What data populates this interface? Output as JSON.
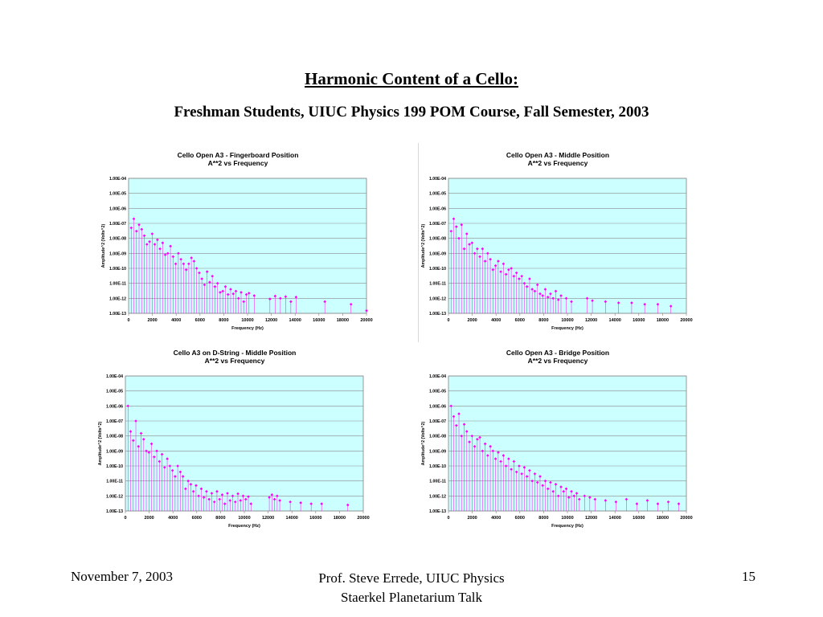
{
  "slide": {
    "title": "Harmonic Content of a Cello:",
    "subtitle": "Freshman Students, UIUC Physics 199 POM Course, Fall Semester, 2003",
    "footer_left": "November 7, 2003",
    "footer_center_line1": "Prof. Steve Errede, UIUC Physics",
    "footer_center_line2": "Staerkel Planetarium Talk",
    "page_number": "15"
  },
  "colors": {
    "plot_background": "#ccffff",
    "series": "#ff00ff",
    "grid": "#8c8c8c"
  },
  "chart_data": [
    {
      "type": "scatter",
      "title": "Cello Open A3 - Fingerboard Position",
      "subtitle": "A**2 vs Frequency",
      "xlabel": "Frequency (Hz)",
      "ylabel": "Amplitude^2 (Volts^2)",
      "y_scale": "log",
      "xlim": [
        0,
        20000
      ],
      "ylim": [
        "1.00E-13",
        "1.00E-04"
      ],
      "x_ticks": [
        "0",
        "2000",
        "4000",
        "6000",
        "8000",
        "10000",
        "12000",
        "14000",
        "16000",
        "18000",
        "20000"
      ],
      "y_ticks": [
        "1.00E-04",
        "1.00E-05",
        "1.00E-06",
        "1.00E-07",
        "1.00E-08",
        "1.00E-09",
        "1.00E-10",
        "1.00E-11",
        "1.00E-12",
        "1.00E-13"
      ],
      "grid": true,
      "x": [
        220,
        440,
        660,
        880,
        1100,
        1320,
        1540,
        1760,
        1980,
        2200,
        2420,
        2640,
        2860,
        3080,
        3300,
        3520,
        3740,
        3960,
        4180,
        4400,
        4620,
        4840,
        5060,
        5280,
        5500,
        5720,
        5940,
        6160,
        6380,
        6600,
        6820,
        7040,
        7260,
        7480,
        7700,
        7920,
        8140,
        8360,
        8580,
        8800,
        9020,
        9240,
        9460,
        9680,
        9900,
        10120,
        10560,
        11880,
        12320,
        12760,
        13200,
        13640,
        14080,
        16500,
        18700,
        20000
      ],
      "values": [
        5e-08,
        2e-07,
        3e-08,
        8e-08,
        4e-08,
        1.5e-08,
        4e-09,
        6e-09,
        2e-08,
        4e-09,
        8e-09,
        2e-09,
        5e-09,
        8e-10,
        1e-09,
        3e-09,
        6e-10,
        2e-10,
        1e-09,
        4e-10,
        2e-10,
        8e-11,
        2e-10,
        5e-10,
        3e-10,
        1e-10,
        5e-11,
        2e-11,
        8e-12,
        6e-11,
        1.2e-11,
        3e-11,
        6e-12,
        1e-11,
        2.5e-12,
        3e-12,
        6e-12,
        1.8e-12,
        4e-12,
        2e-12,
        3e-12,
        1e-12,
        2.5e-12,
        6e-13,
        1.8e-12,
        2.2e-12,
        1.5e-12,
        9e-13,
        1.4e-12,
        1e-12,
        1.3e-12,
        6e-13,
        1.2e-12,
        6e-13,
        4e-13,
        1.5e-13
      ]
    },
    {
      "type": "scatter",
      "title": "Cello Open A3 - Middle Position",
      "subtitle": "A**2 vs Frequency",
      "xlabel": "Frequency (Hz)",
      "ylabel": "Amplitude^2 (Volts^2)",
      "y_scale": "log",
      "xlim": [
        0,
        20000
      ],
      "ylim": [
        "1.00E-13",
        "1.00E-04"
      ],
      "x_ticks": [
        "0",
        "2000",
        "4000",
        "6000",
        "8000",
        "10000",
        "12000",
        "14000",
        "16000",
        "18000",
        "20000"
      ],
      "y_ticks": [
        "1.00E-04",
        "1.00E-05",
        "1.00E-06",
        "1.00E-07",
        "1.00E-08",
        "1.00E-09",
        "1.00E-10",
        "1.00E-11",
        "1.00E-12",
        "1.00E-13"
      ],
      "grid": true,
      "x": [
        220,
        440,
        660,
        880,
        1100,
        1320,
        1540,
        1760,
        1980,
        2200,
        2420,
        2640,
        2860,
        3080,
        3300,
        3520,
        3740,
        3960,
        4180,
        4400,
        4620,
        4840,
        5060,
        5280,
        5500,
        5720,
        5940,
        6160,
        6380,
        6600,
        6820,
        7040,
        7260,
        7480,
        7700,
        7920,
        8140,
        8360,
        8580,
        8800,
        9020,
        9240,
        9460,
        9900,
        10340,
        11660,
        12100,
        13200,
        14300,
        15400,
        16500,
        17600,
        18700
      ],
      "values": [
        3e-08,
        2e-07,
        6e-08,
        1e-08,
        8e-08,
        2e-09,
        2e-08,
        4e-09,
        5e-09,
        1e-09,
        2e-09,
        6e-10,
        2e-09,
        3e-10,
        1e-09,
        4e-10,
        8e-11,
        1.5e-10,
        3e-10,
        6e-11,
        2e-10,
        4e-11,
        8e-11,
        1e-10,
        3e-11,
        5e-11,
        2e-11,
        3e-11,
        1e-11,
        6e-12,
        2e-11,
        4e-12,
        3e-12,
        8e-12,
        2e-12,
        1.5e-12,
        4e-12,
        1.2e-12,
        2e-12,
        1e-12,
        3e-12,
        8e-13,
        1.5e-12,
        1e-12,
        6e-13,
        1e-12,
        7e-13,
        6e-13,
        5e-13,
        5e-13,
        4e-13,
        4e-13,
        3e-13
      ]
    },
    {
      "type": "scatter",
      "title": "Cello A3 on D-String - Middle Position",
      "subtitle": "A**2 vs Frequency",
      "xlabel": "Frequency (Hz)",
      "ylabel": "Amplitude^2 (Volts^2)",
      "y_scale": "log",
      "xlim": [
        0,
        20000
      ],
      "ylim": [
        "1.00E-13",
        "1.00E-04"
      ],
      "x_ticks": [
        "0",
        "2000",
        "4000",
        "6000",
        "8000",
        "10000",
        "12000",
        "14000",
        "16000",
        "18000",
        "20000"
      ],
      "y_ticks": [
        "1.00E-04",
        "1.00E-05",
        "1.00E-06",
        "1.00E-07",
        "1.00E-08",
        "1.00E-09",
        "1.00E-10",
        "1.00E-11",
        "1.00E-12",
        "1.00E-13"
      ],
      "grid": true,
      "x": [
        220,
        440,
        660,
        880,
        1100,
        1320,
        1540,
        1760,
        1980,
        2200,
        2420,
        2640,
        2860,
        3080,
        3300,
        3520,
        3740,
        3960,
        4180,
        4400,
        4620,
        4840,
        5060,
        5280,
        5500,
        5720,
        5940,
        6160,
        6380,
        6600,
        6820,
        7040,
        7260,
        7480,
        7700,
        7920,
        8140,
        8360,
        8580,
        8800,
        9020,
        9240,
        9460,
        9680,
        9900,
        10120,
        10340,
        10560,
        12100,
        12320,
        12540,
        12760,
        12980,
        13860,
        14740,
        15620,
        16500,
        18700
      ],
      "values": [
        1e-06,
        2e-08,
        5e-09,
        1e-07,
        2e-09,
        1.5e-08,
        6e-09,
        1e-09,
        8e-10,
        3e-09,
        4e-10,
        1e-09,
        2e-10,
        6e-10,
        8e-11,
        3e-10,
        1e-10,
        5e-11,
        2e-11,
        1e-10,
        4e-11,
        2e-11,
        3e-12,
        1e-11,
        6e-12,
        2e-12,
        5e-12,
        1e-12,
        3e-12,
        8e-13,
        2e-12,
        6e-13,
        1.5e-12,
        4e-13,
        2e-12,
        6e-13,
        1.2e-12,
        3e-13,
        1.5e-12,
        5e-13,
        1e-12,
        4e-13,
        1.4e-12,
        5e-13,
        1e-12,
        6e-13,
        9e-13,
        3e-13,
        8e-13,
        1.2e-12,
        6e-13,
        1e-12,
        5e-13,
        4e-13,
        3.5e-13,
        3e-13,
        3e-13,
        2.5e-13
      ]
    },
    {
      "type": "scatter",
      "title": "Cello Open A3 - Bridge Position",
      "subtitle": "A**2 vs Frequency",
      "xlabel": "Frequency (Hz)",
      "ylabel": "Amplitude^2 (Volts^2)",
      "y_scale": "log",
      "xlim": [
        0,
        20000
      ],
      "ylim": [
        "1.00E-13",
        "1.00E-04"
      ],
      "x_ticks": [
        "0",
        "2000",
        "4000",
        "6000",
        "8000",
        "10000",
        "12000",
        "14000",
        "16000",
        "18000",
        "20000"
      ],
      "y_ticks": [
        "1.00E-04",
        "1.00E-05",
        "1.00E-06",
        "1.00E-07",
        "1.00E-08",
        "1.00E-09",
        "1.00E-10",
        "1.00E-11",
        "1.00E-12",
        "1.00E-13"
      ],
      "grid": true,
      "x": [
        220,
        440,
        660,
        880,
        1100,
        1320,
        1540,
        1760,
        1980,
        2200,
        2420,
        2640,
        2860,
        3080,
        3300,
        3520,
        3740,
        3960,
        4180,
        4400,
        4620,
        4840,
        5060,
        5280,
        5500,
        5720,
        5940,
        6160,
        6380,
        6600,
        6820,
        7040,
        7260,
        7480,
        7700,
        7920,
        8140,
        8360,
        8580,
        8800,
        9020,
        9240,
        9460,
        9680,
        9900,
        10120,
        10340,
        10560,
        10780,
        11000,
        11440,
        11880,
        12320,
        13200,
        14080,
        14960,
        15840,
        16720,
        17600,
        18480,
        19360
      ],
      "values": [
        1e-06,
        2e-07,
        5e-08,
        3e-07,
        1e-08,
        6e-08,
        2e-08,
        4e-09,
        1e-08,
        2e-09,
        6e-09,
        8e-09,
        1e-09,
        3e-09,
        5e-10,
        2e-09,
        1e-09,
        3e-10,
        8e-10,
        2e-10,
        5e-10,
        1e-10,
        3e-10,
        6e-11,
        2e-10,
        4e-11,
        1e-10,
        3e-11,
        8e-11,
        2e-11,
        5e-11,
        1e-11,
        3e-11,
        8e-12,
        2e-11,
        5e-12,
        1e-11,
        3e-12,
        8e-12,
        2e-12,
        6e-12,
        1e-12,
        4e-12,
        2e-12,
        3e-12,
        8e-13,
        2e-12,
        1e-12,
        1.5e-12,
        6e-13,
        1e-12,
        8e-13,
        6e-13,
        5e-13,
        4e-13,
        6e-13,
        3e-13,
        5e-13,
        3e-13,
        4e-13,
        3e-13
      ]
    }
  ]
}
